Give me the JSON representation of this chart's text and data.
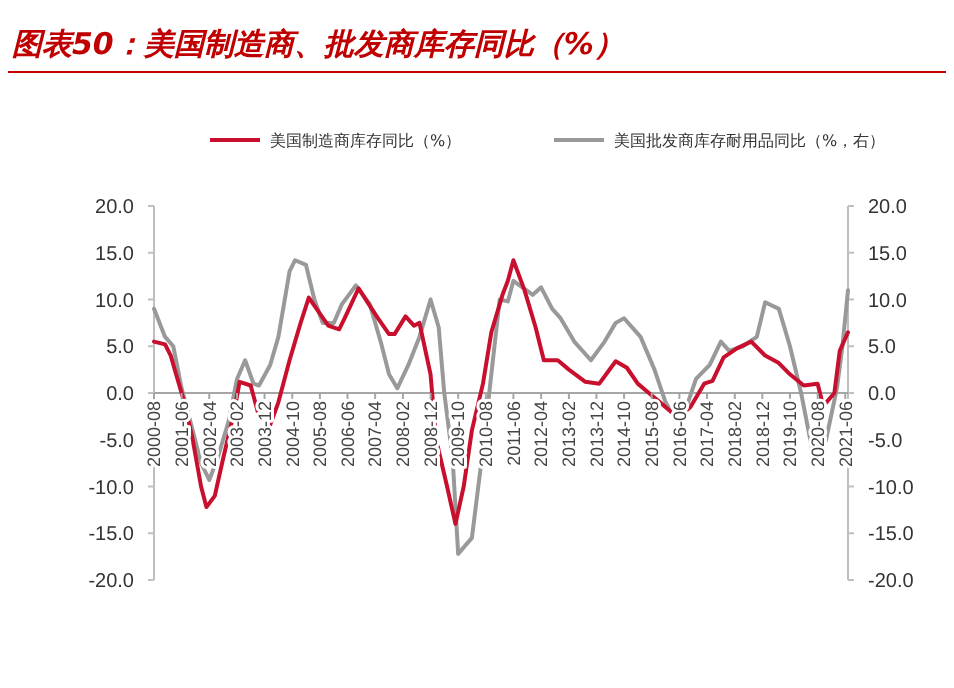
{
  "chart_data": {
    "type": "line",
    "title": "图表50：美国制造商、批发商库存同比（%）",
    "legend": "top",
    "grid": false,
    "xlim": [
      "2000-08",
      "2021-07"
    ],
    "xticks": [
      "2000-08",
      "2001-06",
      "2002-04",
      "2003-02",
      "2003-12",
      "2004-10",
      "2005-08",
      "2006-06",
      "2007-04",
      "2008-02",
      "2008-12",
      "2009-10",
      "2010-08",
      "2011-06",
      "2012-04",
      "2013-02",
      "2013-12",
      "2014-10",
      "2015-08",
      "2016-06",
      "2017-04",
      "2018-02",
      "2018-12",
      "2019-10",
      "2020-08",
      "2021-06"
    ],
    "ylim": [
      -20,
      20
    ],
    "yticks": [
      {
        "value": -20,
        "label": "-20.0"
      },
      {
        "value": -15,
        "label": "-15.0"
      },
      {
        "value": -10,
        "label": "-10.0"
      },
      {
        "value": -5,
        "label": "-5.0"
      },
      {
        "value": 0,
        "label": "0.0"
      },
      {
        "value": 5,
        "label": "5.0"
      },
      {
        "value": 10,
        "label": "10.0"
      },
      {
        "value": 15,
        "label": "15.0"
      },
      {
        "value": 20,
        "label": "20.0"
      }
    ],
    "y2lim": [
      -20,
      20
    ],
    "y2ticks": [
      {
        "value": -20,
        "label": "-20.0"
      },
      {
        "value": -15,
        "label": "-15.0"
      },
      {
        "value": -10,
        "label": "-10.0"
      },
      {
        "value": -5,
        "label": "-5.0"
      },
      {
        "value": 0,
        "label": "0.0"
      },
      {
        "value": 5,
        "label": "5.0"
      },
      {
        "value": 10,
        "label": "10.0"
      },
      {
        "value": 15,
        "label": "15.0"
      },
      {
        "value": 20,
        "label": "20.0"
      }
    ],
    "series": [
      {
        "name": "美国制造商库存同比（%）",
        "color": "#c8102e",
        "x": [
          "2000-08",
          "2000-12",
          "2001-02",
          "2001-04",
          "2001-07",
          "2001-10",
          "2002-01",
          "2002-03",
          "2002-06",
          "2002-09",
          "2003-01",
          "2003-03",
          "2003-07",
          "2003-10",
          "2004-02",
          "2004-05",
          "2004-09",
          "2005-01",
          "2005-04",
          "2005-08",
          "2005-11",
          "2006-03",
          "2006-05",
          "2006-10",
          "2007-01",
          "2007-05",
          "2007-09",
          "2007-11",
          "2008-03",
          "2008-06",
          "2008-08",
          "2008-12",
          "2009-02",
          "2009-06",
          "2009-09",
          "2009-12",
          "2010-03",
          "2010-07",
          "2010-10",
          "2011-02",
          "2011-04",
          "2011-06",
          "2011-10",
          "2012-02",
          "2012-05",
          "2012-10",
          "2013-02",
          "2013-08",
          "2014-01",
          "2014-07",
          "2014-11",
          "2015-03",
          "2015-07",
          "2015-11",
          "2016-03",
          "2016-06",
          "2016-10",
          "2017-03",
          "2017-06",
          "2017-10",
          "2018-03",
          "2018-08",
          "2019-01",
          "2019-06",
          "2019-10",
          "2020-03",
          "2020-08",
          "2020-10",
          "2021-02",
          "2021-04",
          "2021-07"
        ],
        "values": [
          5.5,
          5.2,
          4,
          2,
          -1,
          -5,
          -10,
          -12.2,
          -11,
          -7,
          -2,
          1.2,
          0.8,
          -2.5,
          -3.4,
          -1,
          3.5,
          7.5,
          10.2,
          8.5,
          7.2,
          6.8,
          8,
          11.2,
          9.8,
          8,
          6.3,
          6.3,
          8.2,
          7.2,
          7.5,
          2,
          -5,
          -10,
          -14,
          -10,
          -4,
          1,
          6.5,
          10.5,
          12,
          14.2,
          11,
          7,
          3.5,
          3.5,
          2.5,
          1.2,
          1,
          3.4,
          2.7,
          1,
          0,
          -1,
          -2,
          -2.5,
          -1.5,
          1,
          1.3,
          3.8,
          4.8,
          5.5,
          4,
          3.2,
          2,
          0.8,
          1,
          -1.4,
          0,
          4.5,
          6.5
        ]
      },
      {
        "name": "美国批发商库存耐用品同比（%，右）",
        "color": "#999999",
        "axis": "y2",
        "x": [
          "2000-08",
          "2000-12",
          "2001-03",
          "2001-06",
          "2001-10",
          "2002-01",
          "2002-04",
          "2002-07",
          "2002-11",
          "2003-02",
          "2003-05",
          "2003-08",
          "2003-10",
          "2004-02",
          "2004-05",
          "2004-09",
          "2004-11",
          "2005-03",
          "2005-06",
          "2005-09",
          "2006-01",
          "2006-04",
          "2006-09",
          "2007-02",
          "2007-06",
          "2007-09",
          "2007-12",
          "2008-04",
          "2008-08",
          "2008-12",
          "2009-03",
          "2009-05",
          "2009-08",
          "2009-10",
          "2010-03",
          "2010-07",
          "2010-10",
          "2011-01",
          "2011-04",
          "2011-06",
          "2012-01",
          "2012-04",
          "2012-08",
          "2012-11",
          "2013-04",
          "2013-10",
          "2014-03",
          "2014-07",
          "2014-10",
          "2015-04",
          "2015-09",
          "2016-01",
          "2016-03",
          "2016-08",
          "2016-12",
          "2017-05",
          "2017-09",
          "2017-12",
          "2018-05",
          "2018-10",
          "2019-01",
          "2019-06",
          "2019-10",
          "2020-02",
          "2020-06",
          "2020-08",
          "2020-11",
          "2021-03",
          "2021-05",
          "2021-07"
        ],
        "values": [
          9,
          6,
          5,
          0.5,
          -4,
          -7.5,
          -9.3,
          -7,
          -3,
          1.5,
          3.5,
          1,
          0.8,
          3,
          6,
          13,
          14.2,
          13.7,
          10,
          7.5,
          7.5,
          9.5,
          11.5,
          9.5,
          5.5,
          2,
          0.5,
          3,
          6,
          10,
          7,
          0,
          -7,
          -17.2,
          -15.5,
          -6,
          2,
          10,
          9.8,
          12,
          10.5,
          11.3,
          9,
          8,
          5.5,
          3.5,
          5.5,
          7.5,
          8,
          6,
          2.5,
          -1,
          -2,
          -2,
          1.5,
          3,
          5.5,
          4.5,
          5,
          6,
          9.7,
          9,
          5,
          0,
          -6,
          -7.5,
          -5,
          0.5,
          5,
          11
        ]
      }
    ]
  }
}
